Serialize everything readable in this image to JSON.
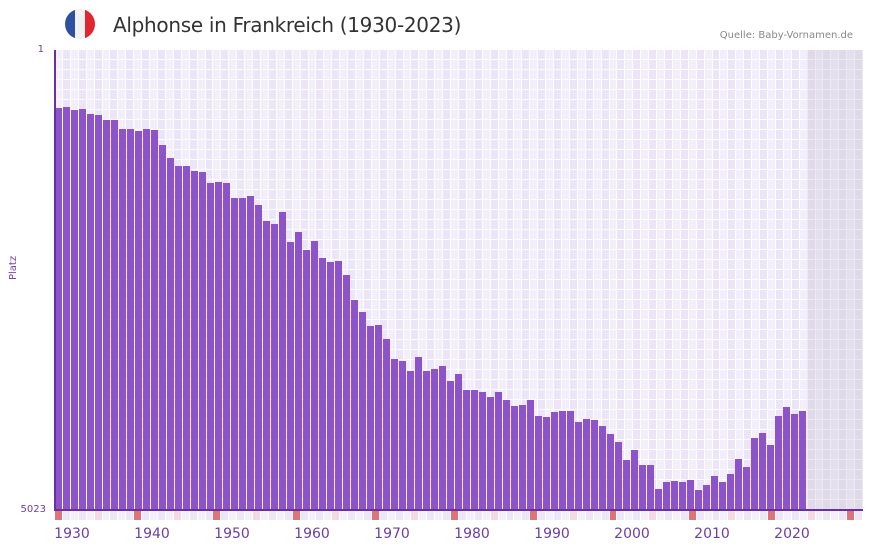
{
  "header": {
    "title": "Alphonse in Frankreich (1930-2023)",
    "source": "Quelle: Baby-Vornamen.de",
    "flag": {
      "icon": "france-flag-icon",
      "colors": [
        "#2f4fa0",
        "#f1f1f1",
        "#e0262f"
      ]
    }
  },
  "colors": {
    "bar": "#8c54c8",
    "axis": "#6a2fa0",
    "marker_major": "#e0737a",
    "marker_minor": "#f5d9e2",
    "future_shade": "#e3dfea"
  },
  "chart_data": {
    "type": "bar",
    "title": "Alphonse in Frankreich (1930-2023)",
    "xlabel": "",
    "ylabel": "Platz",
    "y_inverted": true,
    "ylim": [
      1,
      5023
    ],
    "ytick_labels": [
      "1",
      "5023"
    ],
    "xtick_labels": [
      "1930",
      "1940",
      "1950",
      "1960",
      "1970",
      "1980",
      "1990",
      "2000",
      "2010",
      "2020"
    ],
    "x_range": [
      1930,
      2030
    ],
    "grid": true,
    "legend": null,
    "annotation": "Quelle: Baby-Vornamen.de",
    "categories": [
      1930,
      1931,
      1932,
      1933,
      1934,
      1935,
      1936,
      1937,
      1938,
      1939,
      1940,
      1941,
      1942,
      1943,
      1944,
      1945,
      1946,
      1947,
      1948,
      1949,
      1950,
      1951,
      1952,
      1953,
      1954,
      1955,
      1956,
      1957,
      1958,
      1959,
      1960,
      1961,
      1962,
      1963,
      1964,
      1965,
      1966,
      1967,
      1968,
      1969,
      1970,
      1971,
      1972,
      1973,
      1974,
      1975,
      1976,
      1977,
      1978,
      1979,
      1980,
      1981,
      1982,
      1983,
      1984,
      1985,
      1986,
      1987,
      1988,
      1989,
      1990,
      1991,
      1992,
      1993,
      1994,
      1995,
      1996,
      1997,
      1998,
      1999,
      2000,
      2001,
      2002,
      2003,
      2004,
      2005,
      2006,
      2007,
      2008,
      2009,
      2010,
      2011,
      2012,
      2013,
      2014,
      2015,
      2016,
      2017,
      2018,
      2019,
      2020,
      2021,
      2022,
      2023
    ],
    "values": [
      631,
      620,
      653,
      642,
      696,
      707,
      762,
      762,
      860,
      860,
      882,
      860,
      871,
      1035,
      1177,
      1264,
      1264,
      1319,
      1330,
      1450,
      1439,
      1450,
      1613,
      1613,
      1592,
      1690,
      1865,
      1897,
      1766,
      2094,
      1985,
      2181,
      2083,
      2268,
      2312,
      2301,
      2454,
      2727,
      2858,
      3011,
      3000,
      3153,
      3371,
      3393,
      3502,
      3349,
      3502,
      3480,
      3447,
      3611,
      3535,
      3709,
      3709,
      3731,
      3786,
      3731,
      3819,
      3884,
      3873,
      3819,
      3993,
      4004,
      3950,
      3939,
      3939,
      4059,
      4026,
      4037,
      4103,
      4190,
      4277,
      4474,
      4365,
      4528,
      4528,
      4790,
      4714,
      4703,
      4714,
      4692,
      4801,
      4747,
      4648,
      4714,
      4627,
      4463,
      4550,
      4234,
      4179,
      4310,
      3993,
      3895,
      3971,
      3939
    ]
  }
}
